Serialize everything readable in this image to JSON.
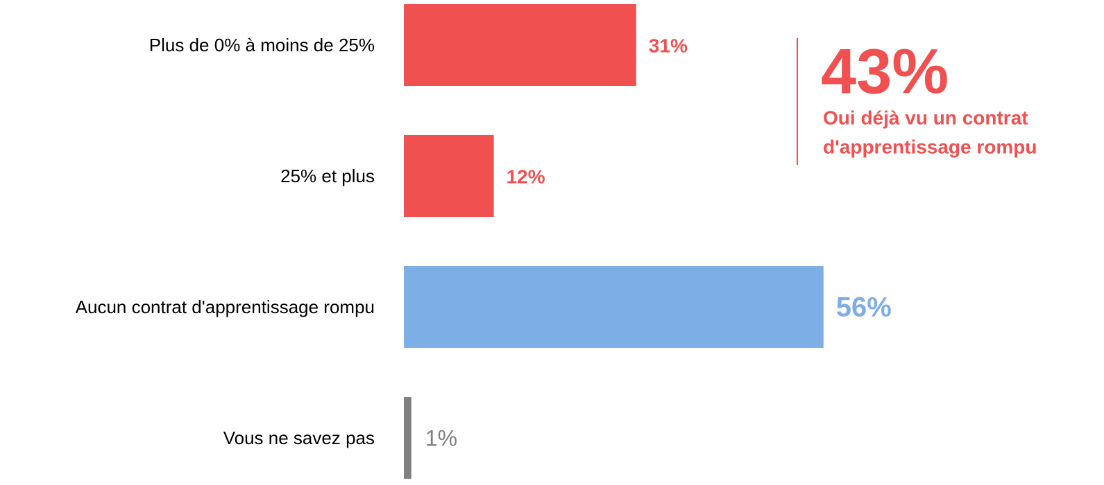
{
  "chart_data": {
    "type": "bar",
    "orientation": "horizontal",
    "categories": [
      "Plus de 0% à moins de 25%",
      "25% et plus",
      "Aucun contrat d'apprentissage rompu",
      "Vous ne savez pas"
    ],
    "values": [
      31,
      12,
      56,
      1
    ],
    "value_labels": [
      "31%",
      "12%",
      "56%",
      "1%"
    ],
    "colors": [
      "#f05050",
      "#f05050",
      "#7eaee6",
      "#808080"
    ],
    "annotation": {
      "headline": "43%",
      "text": [
        "Oui déjà vu un contrat",
        "d'apprentissage rompu"
      ],
      "color": "#f05050"
    }
  }
}
